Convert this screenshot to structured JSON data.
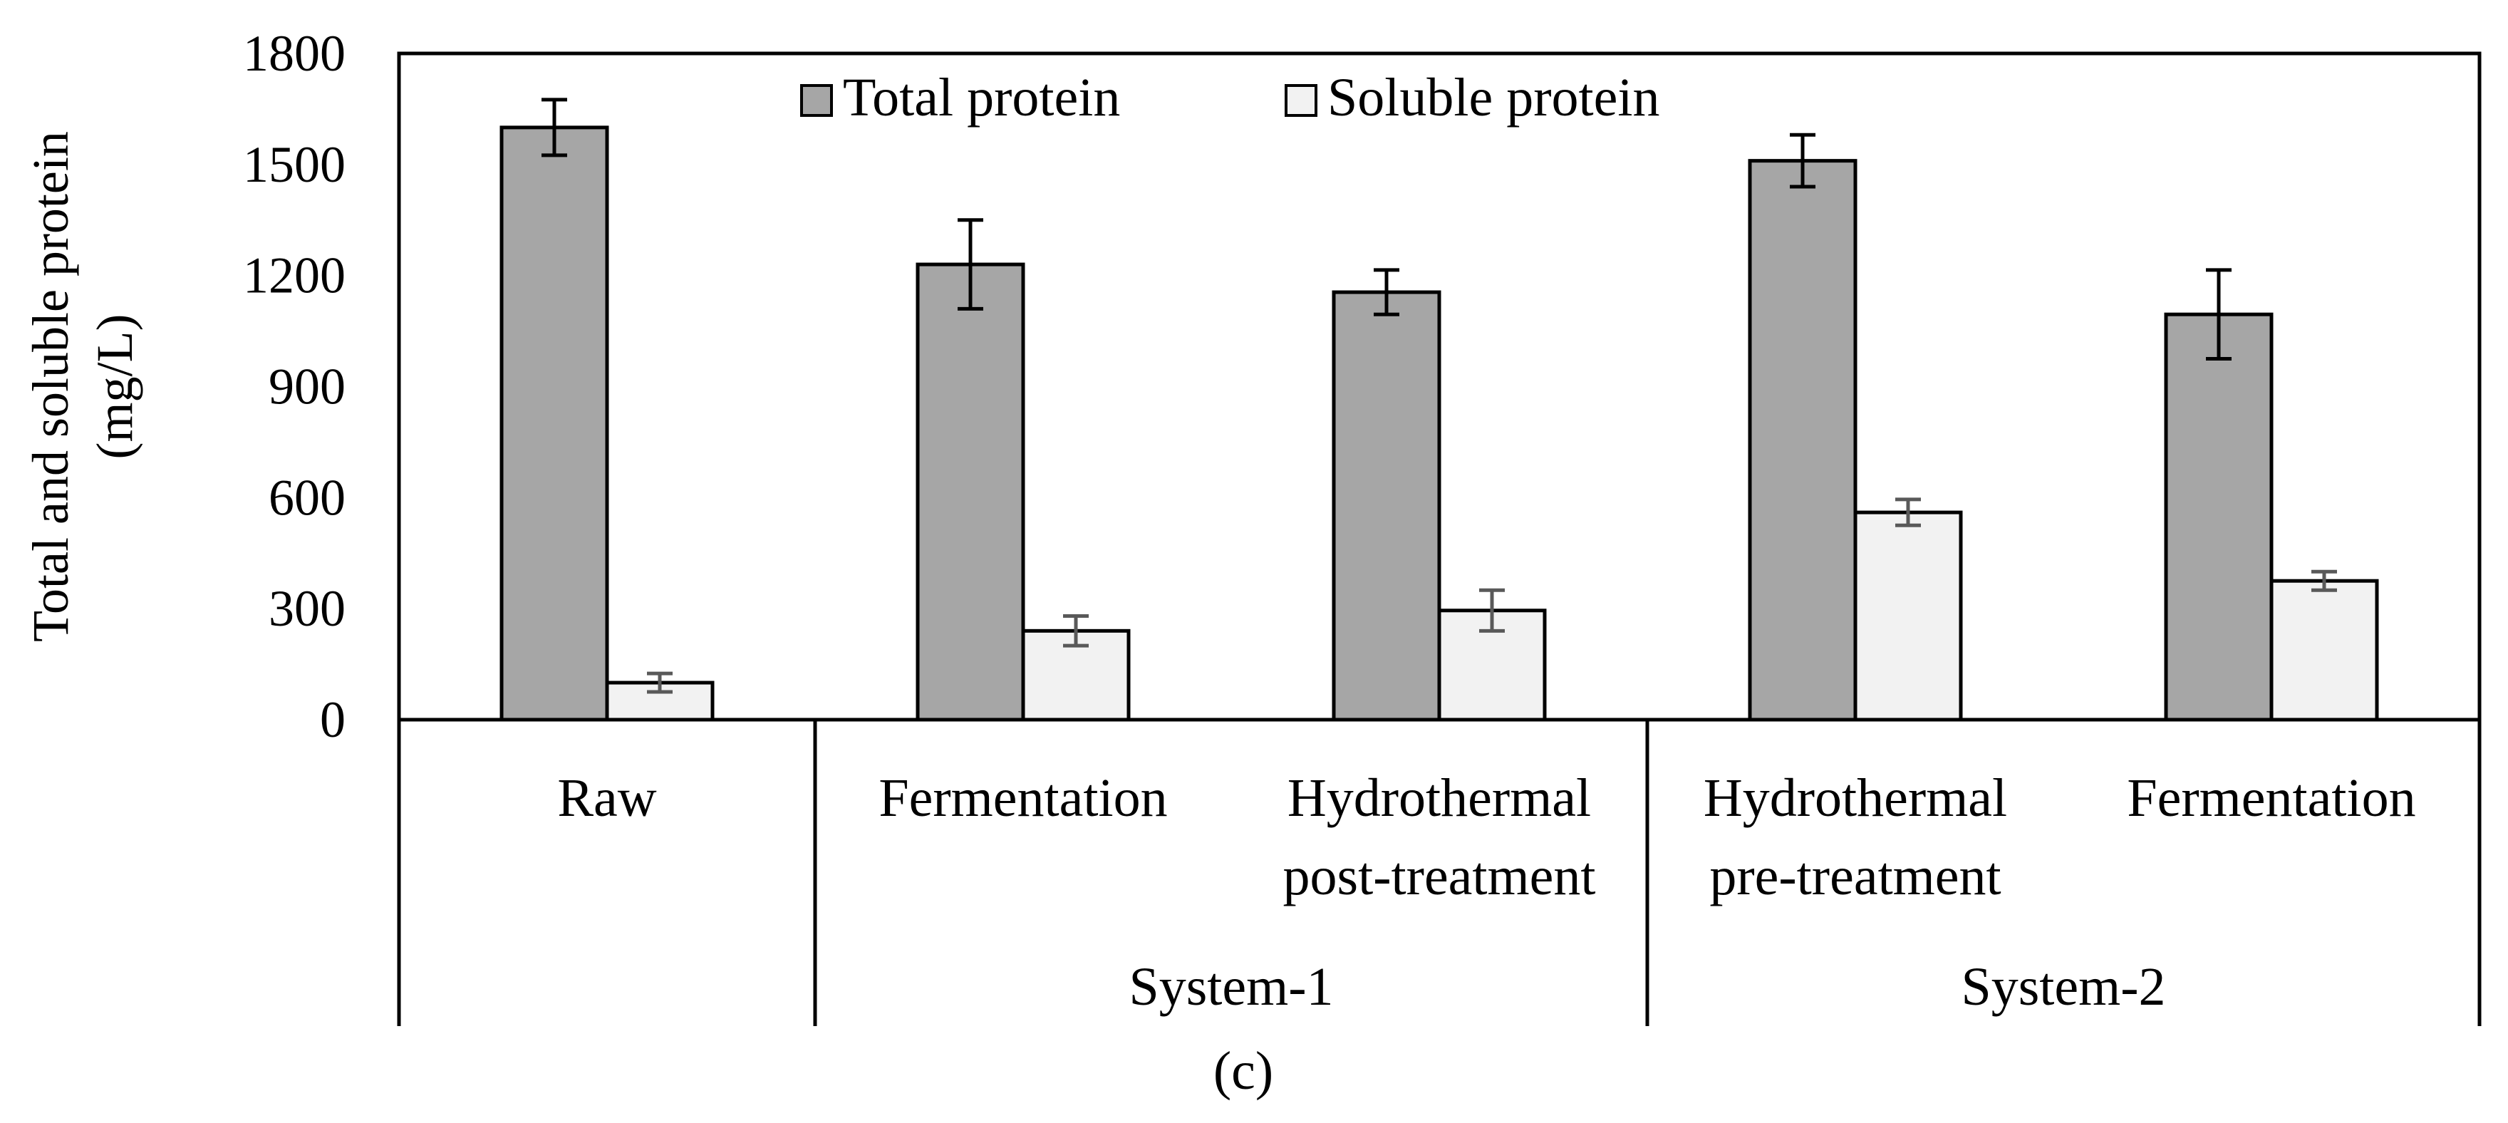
{
  "panel_label": "(c)",
  "chart_data": {
    "type": "bar",
    "ylabel": [
      "Total and soluble  protein",
      "(mg/L)"
    ],
    "ylim": [
      0,
      1800
    ],
    "yticks": [
      0,
      300,
      600,
      900,
      1200,
      1500,
      1800
    ],
    "categories": [
      [
        "Raw"
      ],
      [
        "Fermentation"
      ],
      [
        "Hydrothermal",
        "post-treatment"
      ],
      [
        "Hydrothermal",
        "pre-treatment"
      ],
      [
        "Fermentation"
      ]
    ],
    "groups": [
      {
        "label": "System-1",
        "from": 1,
        "to": 2
      },
      {
        "label": "System-2",
        "from": 3,
        "to": 4
      }
    ],
    "series": [
      {
        "name": "Total protein",
        "color": "#a6a6a6",
        "values": [
          1600,
          1230,
          1155,
          1510,
          1095
        ],
        "errors": [
          75,
          120,
          60,
          70,
          120
        ]
      },
      {
        "name": "Soluble protein",
        "color": "#f2f2f2",
        "values": [
          100,
          240,
          295,
          560,
          375
        ],
        "errors": [
          25,
          40,
          55,
          35,
          25
        ]
      }
    ],
    "legend": "top-center",
    "grid": false
  }
}
